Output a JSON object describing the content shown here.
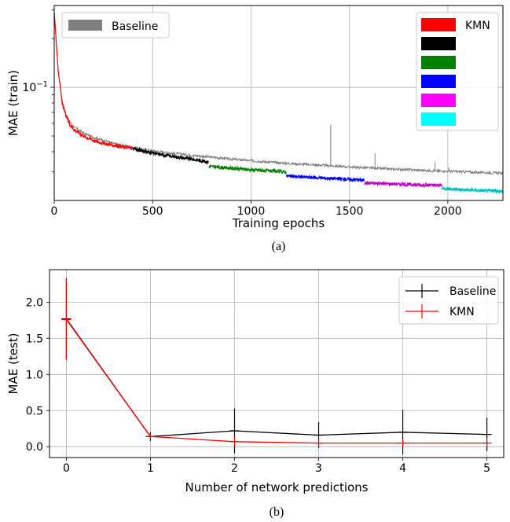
{
  "chart_data": [
    {
      "type": "line",
      "panel_caption": "(a)",
      "xlabel": "Training epochs",
      "ylabel": "MAE (train)",
      "xlim": [
        0,
        2280
      ],
      "ylim": [
        0.02,
        0.32
      ],
      "yscale": "log",
      "xticks": [
        0,
        500,
        1000,
        1500,
        2000
      ],
      "xtick_labels": [
        "0",
        "500",
        "1000",
        "1500",
        "2000"
      ],
      "yticks": [
        0.1
      ],
      "ytick_labels": [
        "10^{-1}"
      ],
      "grid": true,
      "legend_left": {
        "placement": "top-left",
        "entries": [
          {
            "label": "Baseline",
            "color": "#808080"
          }
        ]
      },
      "legend_right": {
        "placement": "top-right",
        "entries": [
          {
            "label": "KMN",
            "color": "#ff0000"
          },
          {
            "label": "",
            "color": "#000000"
          },
          {
            "label": "",
            "color": "#008000"
          },
          {
            "label": "",
            "color": "#0000ff"
          },
          {
            "label": "",
            "color": "#ff00ff"
          },
          {
            "label": "",
            "color": "#00ffff"
          }
        ]
      },
      "series": [
        {
          "name": "Baseline",
          "color": "#808080",
          "x": [
            0,
            5,
            10,
            20,
            40,
            60,
            80,
            100,
            150,
            200,
            300,
            400,
            500,
            600,
            700,
            800,
            900,
            1000,
            1100,
            1200,
            1300,
            1400,
            1500,
            1600,
            1700,
            1800,
            1900,
            2000,
            2100,
            2200,
            2280
          ],
          "y": [
            0.29,
            0.24,
            0.19,
            0.125,
            0.082,
            0.068,
            0.061,
            0.057,
            0.052,
            0.049,
            0.045,
            0.0425,
            0.0405,
            0.0392,
            0.038,
            0.037,
            0.036,
            0.0352,
            0.0345,
            0.0338,
            0.0333,
            0.0328,
            0.0322,
            0.0318,
            0.0313,
            0.031,
            0.0306,
            0.0303,
            0.03,
            0.0297,
            0.0295
          ],
          "spikes": [
            {
              "x": 958,
              "y": 0.0362
            },
            {
              "x": 1405,
              "y": 0.0585
            },
            {
              "x": 1630,
              "y": 0.0392
            },
            {
              "x": 1935,
              "y": 0.0345
            },
            {
              "x": 2005,
              "y": 0.032
            }
          ]
        },
        {
          "name": "KMN",
          "color": "#ff0000",
          "x": [
            0,
            5,
            10,
            20,
            40,
            60,
            80,
            100,
            150,
            200,
            250,
            300,
            350,
            400
          ],
          "y": [
            0.29,
            0.24,
            0.19,
            0.125,
            0.08,
            0.066,
            0.059,
            0.055,
            0.05,
            0.047,
            0.045,
            0.0438,
            0.0428,
            0.042
          ]
        },
        {
          "name": "",
          "color": "#000000",
          "x": [
            400,
            500,
            600,
            700,
            785
          ],
          "y": [
            0.0418,
            0.0392,
            0.0375,
            0.036,
            0.0345
          ]
        },
        {
          "name": "",
          "color": "#008000",
          "x": [
            785,
            900,
            1000,
            1100,
            1180
          ],
          "y": [
            0.0325,
            0.0316,
            0.031,
            0.0304,
            0.03
          ]
        },
        {
          "name": "",
          "color": "#0000ff",
          "x": [
            1180,
            1300,
            1400,
            1500,
            1575
          ],
          "y": [
            0.0283,
            0.0278,
            0.0274,
            0.027,
            0.0267
          ]
        },
        {
          "name": "",
          "color": "#c000c0",
          "x": [
            1575,
            1700,
            1800,
            1880,
            1970
          ],
          "y": [
            0.0257,
            0.0254,
            0.0251,
            0.0249,
            0.0248
          ]
        },
        {
          "name": "",
          "color": "#00c0c0",
          "x": [
            1970,
            2050,
            2150,
            2280
          ],
          "y": [
            0.0238,
            0.0234,
            0.0231,
            0.0228
          ]
        }
      ]
    },
    {
      "type": "line",
      "panel_caption": "(b)",
      "xlabel": "Number of network predictions",
      "ylabel": "MAE (test)",
      "xlim": [
        -0.2,
        5.2
      ],
      "ylim": [
        -0.15,
        2.45
      ],
      "xticks": [
        0,
        1,
        2,
        3,
        4,
        5
      ],
      "xtick_labels": [
        "0",
        "1",
        "2",
        "3",
        "4",
        "5"
      ],
      "yticks": [
        0.0,
        0.5,
        1.0,
        1.5,
        2.0
      ],
      "ytick_labels": [
        "0.0",
        "0.5",
        "1.0",
        "1.5",
        "2.0"
      ],
      "grid": true,
      "legend": {
        "placement": "top-right"
      },
      "series": [
        {
          "name": "Baseline",
          "color": "#000000",
          "x": [
            0,
            1,
            2,
            3,
            4,
            5
          ],
          "y": [
            1.77,
            0.14,
            0.22,
            0.16,
            0.2,
            0.17
          ],
          "err": [
            0.56,
            0.06,
            0.31,
            0.18,
            0.31,
            0.23
          ]
        },
        {
          "name": "KMN",
          "color": "#ff0000",
          "x": [
            0,
            1,
            2,
            3,
            4,
            5
          ],
          "y": [
            1.76,
            0.14,
            0.07,
            0.05,
            0.05,
            0.05
          ],
          "err": [
            0.56,
            0.04,
            0.06,
            0.05,
            0.05,
            0.05
          ]
        }
      ]
    }
  ]
}
